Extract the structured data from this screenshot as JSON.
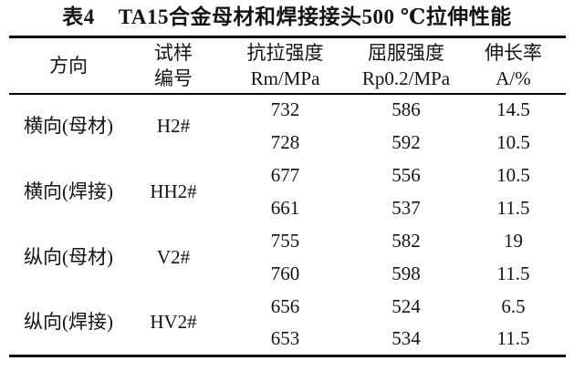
{
  "page": {
    "background": "#ffffff",
    "text_color": "#141414",
    "rule_color": "#000000"
  },
  "title": {
    "label": "表4",
    "text": "TA15合金母材和焊接接头500 ℃拉伸性能"
  },
  "table": {
    "headers": {
      "direction": "方向",
      "specimen": {
        "line1": "试样",
        "line2": "编号"
      },
      "tensile": {
        "line1": "抗拉强度",
        "line2": "Rm/MPa"
      },
      "yield": {
        "line1": "屈服强度",
        "line2": "Rp0.2/MPa"
      },
      "elongation": {
        "line1": "伸长率",
        "line2": "A/%"
      }
    },
    "groups": [
      {
        "direction": "横向(母材)",
        "specimen": "H2#",
        "rows": [
          {
            "rm": "732",
            "rp": "586",
            "a": "14.5"
          },
          {
            "rm": "728",
            "rp": "592",
            "a": "10.5"
          }
        ]
      },
      {
        "direction": "横向(焊接)",
        "specimen": "HH2#",
        "rows": [
          {
            "rm": "677",
            "rp": "556",
            "a": "10.5"
          },
          {
            "rm": "661",
            "rp": "537",
            "a": "11.5"
          }
        ]
      },
      {
        "direction": "纵向(母材)",
        "specimen": "V2#",
        "rows": [
          {
            "rm": "755",
            "rp": "582",
            "a": "19"
          },
          {
            "rm": "760",
            "rp": "598",
            "a": "11.5"
          }
        ]
      },
      {
        "direction": "纵向(焊接)",
        "specimen": "HV2#",
        "rows": [
          {
            "rm": "656",
            "rp": "524",
            "a": "6.5"
          },
          {
            "rm": "653",
            "rp": "534",
            "a": "11.5"
          }
        ]
      }
    ]
  },
  "chart_data": {
    "type": "table",
    "title": "表4 TA15合金母材和焊接接头500 ℃拉伸性能",
    "columns": [
      "方向",
      "试样编号",
      "抗拉强度 Rm/MPa",
      "屈服强度 Rp0.2/MPa",
      "伸长率 A/%"
    ],
    "rows": [
      [
        "横向(母材)",
        "H2#",
        732,
        586,
        14.5
      ],
      [
        "横向(母材)",
        "H2#",
        728,
        592,
        10.5
      ],
      [
        "横向(焊接)",
        "HH2#",
        677,
        556,
        10.5
      ],
      [
        "横向(焊接)",
        "HH2#",
        661,
        537,
        11.5
      ],
      [
        "纵向(母材)",
        "V2#",
        755,
        582,
        19
      ],
      [
        "纵向(母材)",
        "V2#",
        760,
        598,
        11.5
      ],
      [
        "纵向(焊接)",
        "HV2#",
        656,
        524,
        6.5
      ],
      [
        "纵向(焊接)",
        "HV2#",
        653,
        534,
        11.5
      ]
    ]
  }
}
